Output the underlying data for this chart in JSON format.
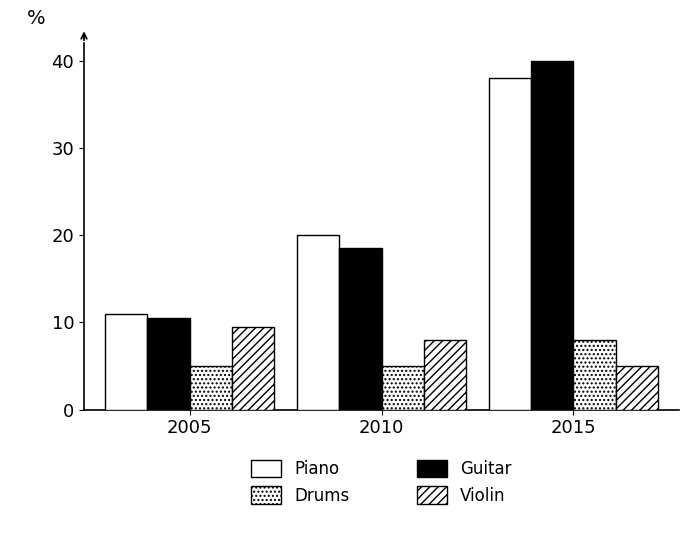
{
  "years": [
    "2005",
    "2010",
    "2015"
  ],
  "instruments": [
    "Piano",
    "Guitar",
    "Drums",
    "Violin"
  ],
  "values": {
    "Piano": [
      11,
      20,
      38
    ],
    "Guitar": [
      10.5,
      18.5,
      40
    ],
    "Drums": [
      5,
      5,
      8
    ],
    "Violin": [
      9.5,
      8,
      5
    ]
  },
  "ylim": [
    0,
    42
  ],
  "yticks": [
    0,
    10,
    20,
    30,
    40
  ],
  "ylabel": "%",
  "bar_width": 0.22,
  "background_color": "#ffffff"
}
